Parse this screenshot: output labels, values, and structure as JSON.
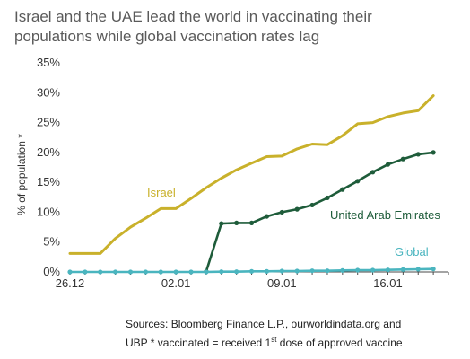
{
  "chart_data": {
    "type": "line",
    "title_lines": [
      "Israel and the UAE lead the world in vaccinating their",
      "populations while global vaccination rates lag"
    ],
    "ylabel": "% of population *",
    "ylim": [
      0,
      35
    ],
    "yticks": [
      0,
      5,
      10,
      15,
      20,
      25,
      30,
      35
    ],
    "ytick_labels": [
      "0%",
      "5%",
      "10%",
      "15%",
      "20%",
      "25%",
      "30%",
      "35%"
    ],
    "xlim": [
      "2020-12-26",
      "2021-01-20"
    ],
    "xticks": [
      "2020-12-26",
      "2021-01-02",
      "2021-01-09",
      "2021-01-16"
    ],
    "xtick_labels": [
      "26.12",
      "02.01",
      "09.01",
      "16.01"
    ],
    "grid": false,
    "series": [
      {
        "name": "Israel",
        "color": "#c9b12b",
        "markers": false,
        "x": [
          "2020-12-26",
          "2020-12-27",
          "2020-12-28",
          "2020-12-29",
          "2020-12-30",
          "2020-12-31",
          "2021-01-01",
          "2021-01-02",
          "2021-01-03",
          "2021-01-04",
          "2021-01-05",
          "2021-01-06",
          "2021-01-07",
          "2021-01-08",
          "2021-01-09",
          "2021-01-10",
          "2021-01-11",
          "2021-01-12",
          "2021-01-13",
          "2021-01-14",
          "2021-01-15",
          "2021-01-16",
          "2021-01-17",
          "2021-01-18",
          "2021-01-19"
        ],
        "values": [
          3.1,
          3.1,
          3.1,
          5.6,
          7.5,
          9.0,
          10.6,
          10.6,
          12.3,
          14.1,
          15.7,
          17.1,
          18.2,
          19.3,
          19.4,
          20.6,
          21.4,
          21.3,
          22.8,
          24.8,
          25.0,
          26.0,
          26.6,
          27.0,
          29.5
        ]
      },
      {
        "name": "United Arab Emirates",
        "color": "#1e5c3a",
        "markers": true,
        "x": [
          "2021-01-04",
          "2021-01-05",
          "2021-01-06",
          "2021-01-07",
          "2021-01-08",
          "2021-01-09",
          "2021-01-10",
          "2021-01-11",
          "2021-01-12",
          "2021-01-13",
          "2021-01-14",
          "2021-01-15",
          "2021-01-16",
          "2021-01-17",
          "2021-01-18",
          "2021-01-19"
        ],
        "values": [
          0.1,
          8.1,
          8.2,
          8.2,
          9.3,
          10.0,
          10.5,
          11.2,
          12.4,
          13.8,
          15.2,
          16.7,
          18.0,
          18.9,
          19.7,
          20.0
        ]
      },
      {
        "name": "Global",
        "color": "#4ab5bf",
        "markers": true,
        "x": [
          "2020-12-26",
          "2020-12-27",
          "2020-12-28",
          "2020-12-29",
          "2020-12-30",
          "2020-12-31",
          "2021-01-01",
          "2021-01-02",
          "2021-01-03",
          "2021-01-04",
          "2021-01-05",
          "2021-01-06",
          "2021-01-07",
          "2021-01-08",
          "2021-01-09",
          "2021-01-10",
          "2021-01-11",
          "2021-01-12",
          "2021-01-13",
          "2021-01-14",
          "2021-01-15",
          "2021-01-16",
          "2021-01-17",
          "2021-01-18",
          "2021-01-19"
        ],
        "values": [
          0.0,
          0.0,
          0.0,
          0.0,
          0.0,
          0.0,
          0.0,
          0.0,
          0.0,
          0.0,
          0.05,
          0.05,
          0.1,
          0.1,
          0.15,
          0.15,
          0.2,
          0.2,
          0.25,
          0.3,
          0.3,
          0.35,
          0.4,
          0.45,
          0.5
        ]
      }
    ]
  },
  "sources": {
    "line1": "Sources: Bloomberg Finance L.P., ourworldindata.org and",
    "line2_prefix": "UBP * vaccinated = received 1",
    "line2_sup": "st",
    "line2_suffix": " dose of approved vaccine"
  }
}
